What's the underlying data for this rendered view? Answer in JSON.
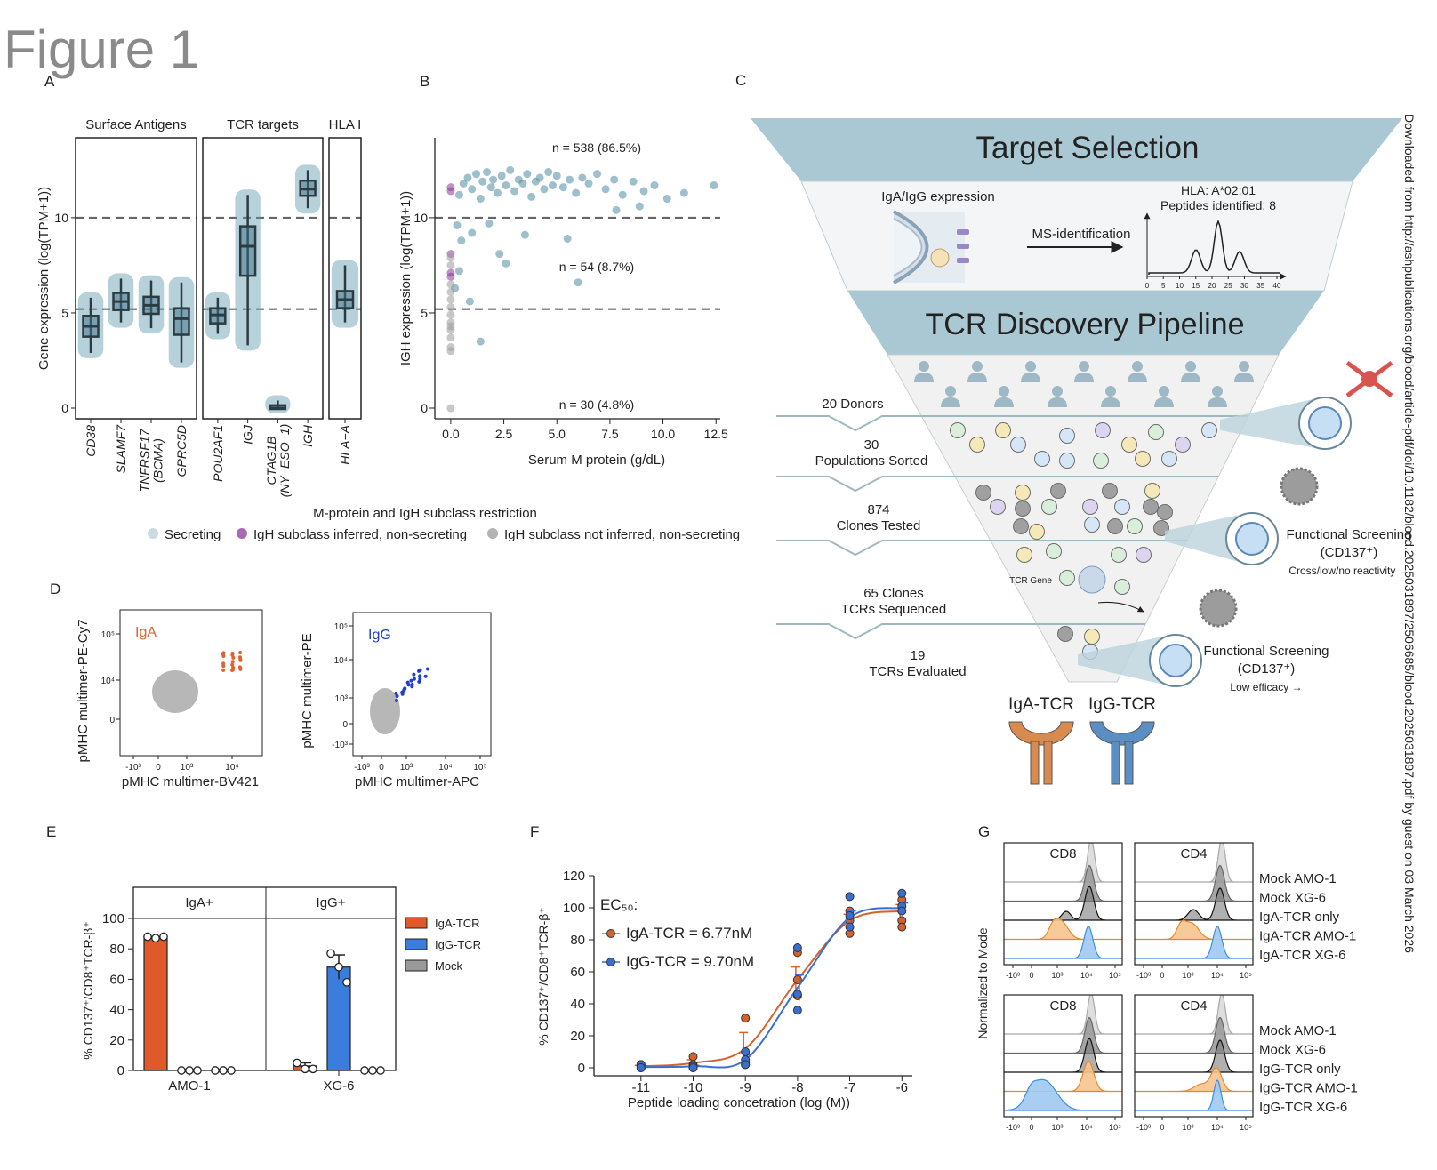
{
  "figure_title": "Figure 1",
  "side_note": "Downloaded from http://ashpublications.org/blood/article-pdf/doi/10.1182/blood.2025031897/2506685/blood.2025031897.pdf by guest on 03 March 2026",
  "panel_a": {
    "label": "A",
    "type": "box",
    "ylabel": "Gene expression (log(TPM+1))",
    "ylim": [
      -0.56,
      14.2
    ],
    "yticks": [
      0,
      5,
      10
    ],
    "thresholds": [
      10,
      5.2
    ],
    "facets": [
      {
        "name": "Surface Antigens",
        "categories": [
          [
            "CD38"
          ],
          [
            "SLAMF7"
          ],
          [
            "TNFRSF17",
            "(BCMA)"
          ],
          [
            "GPRC5D"
          ]
        ],
        "boxes": [
          {
            "median": 4.3,
            "q1": 3.8,
            "q3": 4.8,
            "low": 2.9,
            "high": 5.8
          },
          {
            "median": 5.6,
            "q1": 5.2,
            "q3": 6.0,
            "low": 4.5,
            "high": 6.8
          },
          {
            "median": 5.4,
            "q1": 5.0,
            "q3": 5.8,
            "low": 4.2,
            "high": 6.7
          },
          {
            "median": 4.7,
            "q1": 3.9,
            "q3": 5.2,
            "low": 2.4,
            "high": 6.6
          }
        ]
      },
      {
        "name": "TCR targets",
        "categories": [
          [
            "POU2AF1"
          ],
          [
            "IGJ"
          ],
          [
            "CTAG1B",
            "(NY−ESO−1)"
          ],
          [
            "IGH"
          ]
        ],
        "boxes": [
          {
            "median": 4.9,
            "q1": 4.5,
            "q3": 5.2,
            "low": 3.9,
            "high": 5.8
          },
          {
            "median": 8.5,
            "q1": 7.0,
            "q3": 9.5,
            "low": 3.3,
            "high": 11.2
          },
          {
            "median": 0,
            "q1": 0,
            "q3": 0.1,
            "low": 0,
            "high": 0.4
          },
          {
            "median": 11.5,
            "q1": 11.2,
            "q3": 11.9,
            "low": 10.5,
            "high": 12.5
          }
        ]
      },
      {
        "name": "HLA I",
        "categories": [
          [
            "HLA−A"
          ]
        ],
        "boxes": [
          {
            "median": 5.7,
            "q1": 5.3,
            "q3": 6.1,
            "low": 4.5,
            "high": 7.5
          }
        ]
      }
    ]
  },
  "panel_b": {
    "label": "B",
    "type": "scatter",
    "xlabel": "Serum M protein (g/dL)",
    "ylabel": "IGH expression (log(TPM+1))",
    "xlim": [
      -0.75,
      12.7
    ],
    "ylim": [
      -0.56,
      14.2
    ],
    "xticks": [
      {
        "value": 0,
        "label": "0.0"
      },
      2.5,
      {
        "value": 5,
        "label": "5.0"
      },
      7.5,
      {
        "value": 10,
        "label": "10.0"
      },
      12.5
    ],
    "yticks": [
      0,
      5,
      10
    ],
    "thresholds": [
      10,
      5.2
    ],
    "annotations": [
      "n = 538 (86.5%)",
      "n = 54 (8.7%)",
      "n = 30 (4.8%)"
    ],
    "legend_title": "M-protein and IgH subclass restriction",
    "series": [
      {
        "name": "Secreting",
        "color": "#4f8aa2",
        "points": [
          [
            0.4,
            11.2
          ],
          [
            0.6,
            11.8
          ],
          [
            0.8,
            12.1
          ],
          [
            1.0,
            11.5
          ],
          [
            1.2,
            12.3
          ],
          [
            1.4,
            11.0
          ],
          [
            1.5,
            11.9
          ],
          [
            1.7,
            12.4
          ],
          [
            1.9,
            11.6
          ],
          [
            2.0,
            12.0
          ],
          [
            2.2,
            11.3
          ],
          [
            2.4,
            12.2
          ],
          [
            2.6,
            11.7
          ],
          [
            2.8,
            12.5
          ],
          [
            3.0,
            11.4
          ],
          [
            3.2,
            12.0
          ],
          [
            3.4,
            11.8
          ],
          [
            3.6,
            12.3
          ],
          [
            3.8,
            11.1
          ],
          [
            4.0,
            11.9
          ],
          [
            4.2,
            12.1
          ],
          [
            4.4,
            11.5
          ],
          [
            4.6,
            12.4
          ],
          [
            4.8,
            11.7
          ],
          [
            5.0,
            12.2
          ],
          [
            5.3,
            11.6
          ],
          [
            5.6,
            12.0
          ],
          [
            5.9,
            11.3
          ],
          [
            6.2,
            12.1
          ],
          [
            6.5,
            11.8
          ],
          [
            6.9,
            12.3
          ],
          [
            7.3,
            11.5
          ],
          [
            7.7,
            12.0
          ],
          [
            8.1,
            11.2
          ],
          [
            8.6,
            11.9
          ],
          [
            9.1,
            11.4
          ],
          [
            9.6,
            11.7
          ],
          [
            10.2,
            11.0
          ],
          [
            11.0,
            11.3
          ],
          [
            12.4,
            11.7
          ],
          [
            0.3,
            9.6
          ],
          [
            0.5,
            8.8
          ],
          [
            1.0,
            9.2
          ],
          [
            2.3,
            8.1
          ],
          [
            2.6,
            7.6
          ],
          [
            3.5,
            9.1
          ],
          [
            5.5,
            8.9
          ],
          [
            6.0,
            6.6
          ],
          [
            1.4,
            3.5
          ],
          [
            0.9,
            5.6
          ],
          [
            0.2,
            6.3
          ],
          [
            0.4,
            7.2
          ],
          [
            1.8,
            9.7
          ],
          [
            7.8,
            10.4
          ],
          [
            8.9,
            10.6
          ]
        ]
      },
      {
        "name": "IgH subclass inferred, non-secreting",
        "color": "#8b3a9a",
        "points": [
          [
            0,
            11.6
          ],
          [
            0,
            11.4
          ],
          [
            0,
            8.1
          ],
          [
            0,
            7.1
          ],
          [
            0,
            6.9
          ]
        ]
      },
      {
        "name": "IgH subclass not inferred, non-secreting",
        "color": "#9a9a9a",
        "points": [
          [
            0,
            0
          ],
          [
            0,
            3.0
          ],
          [
            0,
            3.2
          ],
          [
            0,
            3.7
          ],
          [
            0,
            4.1
          ],
          [
            0,
            4.3
          ],
          [
            0,
            4.5
          ],
          [
            0,
            4.9
          ],
          [
            0,
            5.3
          ],
          [
            0,
            5.7
          ],
          [
            0,
            6.1
          ],
          [
            0,
            6.5
          ],
          [
            0,
            7.5
          ],
          [
            0,
            7.9
          ]
        ]
      }
    ]
  },
  "panel_c": {
    "label": "C",
    "stages": [
      "Target Selection",
      "TCR Discovery Pipeline"
    ],
    "target": {
      "expression": "IgA/IgG expression",
      "method": "MS-identification",
      "hla": "HLA: A*02:01",
      "peptides": "Peptides identified: 8",
      "xticks": [
        0,
        5,
        10,
        15,
        20,
        25,
        30,
        35,
        40
      ]
    },
    "steps": [
      [
        "20 Donors"
      ],
      [
        "30",
        "Populations Sorted"
      ],
      [
        "874",
        "Clones Tested"
      ],
      [
        "65 Clones",
        "TCRs Sequenced"
      ],
      [
        "19",
        "TCRs Evaluated"
      ]
    ],
    "gene": "TCR Gene",
    "screens": [
      [
        "Functional Screening",
        "(CD137⁺)",
        "Cross/low/no reactivity →"
      ],
      [
        "Functional Screening",
        "(CD137⁺)",
        "Low efficacy →"
      ]
    ],
    "tcrs": [
      "IgA-TCR",
      "IgG-TCR"
    ]
  },
  "panel_d": {
    "label": "D",
    "plots": [
      {
        "tag": "IgA",
        "color": "#e0622f",
        "xlabel": "pMHC multimer-BV421",
        "ylabel": "pMHC multimer-PE-Cy7",
        "xticks": [
          "-10³",
          "0",
          "10³",
          "10⁴"
        ],
        "yticks": [
          "10⁵",
          "10⁴",
          "0"
        ]
      },
      {
        "tag": "IgG",
        "color": "#1f3fc8",
        "xlabel": "pMHC multimer-APC",
        "ylabel": "pMHC multimer-PE",
        "xticks": [
          "-10³",
          "0",
          "10³",
          "10⁴",
          "10⁵"
        ],
        "yticks": [
          "10⁵",
          "10⁴",
          "10³",
          "0",
          "-10³"
        ]
      }
    ]
  },
  "panel_e": {
    "label": "E",
    "type": "bar",
    "ylabel": "% CD137⁺/CD8⁺TCR-β⁺",
    "ylim": [
      0,
      100
    ],
    "yticks": [
      0,
      20,
      40,
      60,
      80,
      100
    ],
    "facets": [
      "IgA+",
      "IgG+"
    ],
    "categories": [
      "AMO-1",
      "XG-6"
    ],
    "series": [
      {
        "name": "IgA-TCR",
        "color": "#e0592a",
        "values": [
          87,
          3
        ],
        "errors": [
          1,
          2
        ],
        "points": [
          [
            88,
            87,
            88
          ],
          [
            5,
            1,
            1
          ]
        ]
      },
      {
        "name": "IgG-TCR",
        "color": "#3b7ddd",
        "values": [
          0,
          68
        ],
        "errors": [
          0,
          8
        ],
        "points": [
          [
            0,
            0,
            0
          ],
          [
            77,
            68,
            58
          ]
        ]
      },
      {
        "name": "Mock",
        "color": "#9a9a9a",
        "values": [
          0,
          0
        ],
        "errors": [
          0,
          0
        ],
        "points": [
          [
            0,
            0,
            0
          ],
          [
            0,
            0,
            0
          ]
        ]
      }
    ]
  },
  "panel_f": {
    "label": "F",
    "type": "line",
    "xlabel": "Peptide loading concetration (log (M))",
    "ylabel": "% CD137⁺/CD8⁺TCR-β⁺",
    "xlim": [
      -11.9,
      -5.8
    ],
    "ylim": [
      -5,
      120
    ],
    "x": [
      -11,
      -10,
      -9,
      -8,
      -7,
      -6
    ],
    "xticks": [
      -11,
      -10,
      -9,
      -8,
      -7,
      -6
    ],
    "yticks": [
      0,
      20,
      40,
      60,
      80,
      100,
      120
    ],
    "legend_title": "EC₅₀:",
    "series": [
      {
        "name": "IgA-TCR = 6.77nM",
        "color": "#d4622d",
        "values": [
          1,
          3,
          12,
          55,
          92,
          98
        ],
        "errors": [
          0.5,
          2,
          10,
          8,
          4,
          4
        ],
        "points": [
          [
            1,
            2,
            0
          ],
          [
            7,
            2,
            1
          ],
          [
            31,
            3,
            2
          ],
          [
            72,
            55,
            45
          ],
          [
            98,
            84,
            92
          ],
          [
            105,
            92,
            88
          ]
        ]
      },
      {
        "name": "IgG-TCR = 9.70nM",
        "color": "#3a6fd0",
        "values": [
          0.5,
          1,
          5,
          50,
          94,
          100
        ],
        "errors": [
          0.5,
          0.5,
          3,
          8,
          4,
          3
        ],
        "points": [
          [
            2,
            0,
            0
          ],
          [
            0,
            1,
            0
          ],
          [
            10,
            5,
            2
          ],
          [
            75,
            46,
            36
          ],
          [
            107,
            95,
            88
          ],
          [
            109,
            101,
            98
          ]
        ]
      }
    ]
  },
  "panel_g": {
    "label": "G",
    "ylabel": "Normalized to Mode",
    "xticks": [
      "-10³",
      "0",
      "10³",
      "10⁴",
      "10⁵"
    ],
    "groups": [
      {
        "plots": [
          "CD8",
          "CD4"
        ],
        "rows": [
          "Mock AMO-1",
          "Mock XG-6",
          "IgA-TCR only",
          "IgA-TCR AMO-1",
          "IgA-TCR XG-6"
        ]
      },
      {
        "plots": [
          "CD8",
          "CD4"
        ],
        "rows": [
          "Mock AMO-1",
          "Mock XG-6",
          "IgG-TCR only",
          "IgG-TCR AMO-1",
          "IgG-TCR XG-6"
        ]
      }
    ]
  }
}
